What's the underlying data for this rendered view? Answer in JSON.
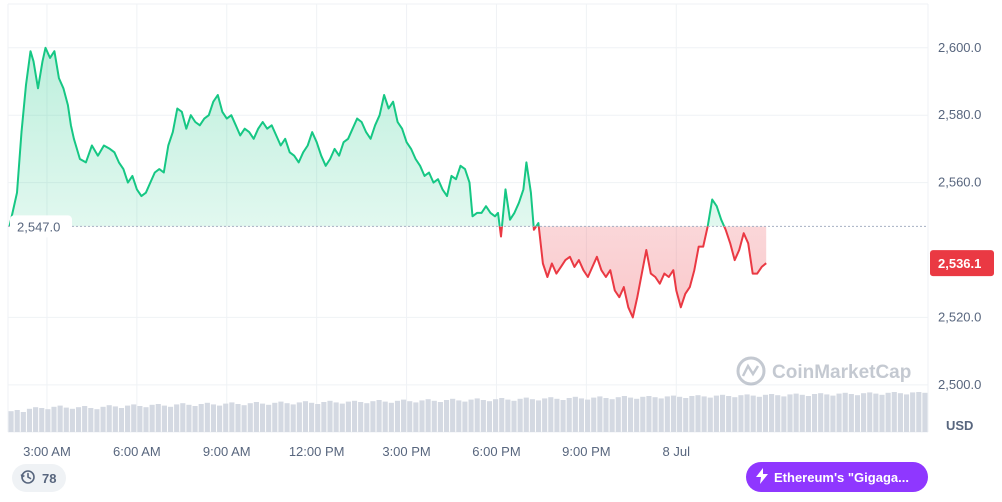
{
  "chart_data": {
    "type": "area",
    "currency": "USD",
    "baseline_value": 2547.0,
    "baseline_label": "2,547.0",
    "last_value": 2536.1,
    "last_label": "2,536.1",
    "ylim": [
      2486,
      2613
    ],
    "y_ticks": [
      {
        "value": 2600,
        "label": "2,600.0"
      },
      {
        "value": 2580,
        "label": "2,580.0"
      },
      {
        "value": 2560,
        "label": "2,560.0"
      },
      {
        "value": 2520,
        "label": "2,520.0"
      },
      {
        "value": 2500,
        "label": "2,500.0"
      }
    ],
    "x_range_hours": [
      1.7,
      32.4
    ],
    "x_ticks": [
      {
        "hour": 3,
        "label": "3:00 AM"
      },
      {
        "hour": 6,
        "label": "6:00 AM"
      },
      {
        "hour": 9,
        "label": "9:00 AM"
      },
      {
        "hour": 12,
        "label": "12:00 PM"
      },
      {
        "hour": 15,
        "label": "3:00 PM"
      },
      {
        "hour": 18,
        "label": "6:00 PM"
      },
      {
        "hour": 21,
        "label": "9:00 PM"
      },
      {
        "hour": 24,
        "label": "8 Jul"
      }
    ],
    "price_series": [
      [
        1.75,
        2547.0
      ],
      [
        1.85,
        2551.0
      ],
      [
        2.0,
        2557.0
      ],
      [
        2.15,
        2575.0
      ],
      [
        2.3,
        2589.0
      ],
      [
        2.45,
        2599.0
      ],
      [
        2.55,
        2596.0
      ],
      [
        2.7,
        2588.0
      ],
      [
        2.85,
        2596.0
      ],
      [
        2.95,
        2600.0
      ],
      [
        3.1,
        2597.0
      ],
      [
        3.25,
        2599.0
      ],
      [
        3.4,
        2591.0
      ],
      [
        3.55,
        2588.0
      ],
      [
        3.7,
        2583.0
      ],
      [
        3.8,
        2577.0
      ],
      [
        3.9,
        2573.0
      ],
      [
        4.0,
        2570.0
      ],
      [
        4.1,
        2567.0
      ],
      [
        4.3,
        2566.0
      ],
      [
        4.5,
        2571.0
      ],
      [
        4.7,
        2568.0
      ],
      [
        4.9,
        2571.0
      ],
      [
        5.1,
        2570.0
      ],
      [
        5.25,
        2569.0
      ],
      [
        5.4,
        2566.0
      ],
      [
        5.55,
        2564.0
      ],
      [
        5.7,
        2560.0
      ],
      [
        5.85,
        2562.0
      ],
      [
        6.0,
        2558.0
      ],
      [
        6.15,
        2556.0
      ],
      [
        6.3,
        2557.0
      ],
      [
        6.45,
        2560.0
      ],
      [
        6.6,
        2563.0
      ],
      [
        6.75,
        2564.0
      ],
      [
        6.9,
        2563.0
      ],
      [
        7.05,
        2571.0
      ],
      [
        7.2,
        2575.0
      ],
      [
        7.35,
        2582.0
      ],
      [
        7.5,
        2581.0
      ],
      [
        7.65,
        2576.0
      ],
      [
        7.8,
        2580.0
      ],
      [
        7.95,
        2578.0
      ],
      [
        8.1,
        2577.0
      ],
      [
        8.25,
        2579.0
      ],
      [
        8.4,
        2580.0
      ],
      [
        8.55,
        2584.0
      ],
      [
        8.7,
        2586.0
      ],
      [
        8.85,
        2581.0
      ],
      [
        9.0,
        2579.0
      ],
      [
        9.15,
        2580.0
      ],
      [
        9.3,
        2577.0
      ],
      [
        9.45,
        2574.0
      ],
      [
        9.6,
        2576.0
      ],
      [
        9.75,
        2575.0
      ],
      [
        9.9,
        2573.0
      ],
      [
        10.05,
        2576.0
      ],
      [
        10.2,
        2578.0
      ],
      [
        10.35,
        2576.0
      ],
      [
        10.5,
        2577.0
      ],
      [
        10.65,
        2574.0
      ],
      [
        10.8,
        2571.0
      ],
      [
        10.95,
        2573.0
      ],
      [
        11.1,
        2569.0
      ],
      [
        11.25,
        2568.0
      ],
      [
        11.4,
        2566.0
      ],
      [
        11.55,
        2569.0
      ],
      [
        11.7,
        2571.0
      ],
      [
        11.85,
        2575.0
      ],
      [
        12.0,
        2572.0
      ],
      [
        12.15,
        2568.0
      ],
      [
        12.3,
        2565.0
      ],
      [
        12.45,
        2567.0
      ],
      [
        12.6,
        2570.0
      ],
      [
        12.75,
        2568.0
      ],
      [
        12.9,
        2572.0
      ],
      [
        13.05,
        2573.0
      ],
      [
        13.2,
        2576.0
      ],
      [
        13.35,
        2579.0
      ],
      [
        13.5,
        2578.0
      ],
      [
        13.65,
        2575.0
      ],
      [
        13.8,
        2573.0
      ],
      [
        13.95,
        2577.0
      ],
      [
        14.1,
        2580.0
      ],
      [
        14.25,
        2586.0
      ],
      [
        14.4,
        2582.0
      ],
      [
        14.55,
        2584.0
      ],
      [
        14.7,
        2578.0
      ],
      [
        14.85,
        2576.0
      ],
      [
        15.0,
        2572.0
      ],
      [
        15.15,
        2570.0
      ],
      [
        15.3,
        2567.0
      ],
      [
        15.45,
        2565.0
      ],
      [
        15.6,
        2562.0
      ],
      [
        15.75,
        2563.0
      ],
      [
        15.9,
        2560.0
      ],
      [
        16.05,
        2561.0
      ],
      [
        16.2,
        2558.0
      ],
      [
        16.35,
        2556.0
      ],
      [
        16.5,
        2562.0
      ],
      [
        16.65,
        2561.0
      ],
      [
        16.8,
        2565.0
      ],
      [
        16.95,
        2564.0
      ],
      [
        17.1,
        2560.0
      ],
      [
        17.2,
        2550.0
      ],
      [
        17.35,
        2551.0
      ],
      [
        17.5,
        2551.0
      ],
      [
        17.65,
        2553.0
      ],
      [
        17.8,
        2551.0
      ],
      [
        17.95,
        2550.0
      ],
      [
        18.05,
        2551.0
      ],
      [
        18.15,
        2544.0
      ],
      [
        18.3,
        2558.0
      ],
      [
        18.45,
        2549.0
      ],
      [
        18.6,
        2551.0
      ],
      [
        18.75,
        2554.0
      ],
      [
        18.9,
        2558.0
      ],
      [
        19.0,
        2566.0
      ],
      [
        19.15,
        2557.0
      ],
      [
        19.25,
        2546.0
      ],
      [
        19.4,
        2548.0
      ],
      [
        19.55,
        2536.0
      ],
      [
        19.7,
        2532.0
      ],
      [
        19.85,
        2536.0
      ],
      [
        20.0,
        2533.0
      ],
      [
        20.15,
        2535.0
      ],
      [
        20.3,
        2537.0
      ],
      [
        20.45,
        2538.0
      ],
      [
        20.6,
        2535.0
      ],
      [
        20.75,
        2537.0
      ],
      [
        20.9,
        2534.0
      ],
      [
        21.05,
        2532.0
      ],
      [
        21.2,
        2535.0
      ],
      [
        21.35,
        2538.0
      ],
      [
        21.5,
        2534.0
      ],
      [
        21.65,
        2532.0
      ],
      [
        21.8,
        2534.0
      ],
      [
        21.95,
        2528.0
      ],
      [
        22.1,
        2526.0
      ],
      [
        22.25,
        2529.0
      ],
      [
        22.4,
        2523.0
      ],
      [
        22.55,
        2520.0
      ],
      [
        22.7,
        2526.0
      ],
      [
        22.85,
        2533.0
      ],
      [
        23.0,
        2540.0
      ],
      [
        23.15,
        2533.0
      ],
      [
        23.3,
        2532.0
      ],
      [
        23.45,
        2530.0
      ],
      [
        23.6,
        2533.0
      ],
      [
        23.75,
        2532.0
      ],
      [
        23.9,
        2534.0
      ],
      [
        24.0,
        2528.0
      ],
      [
        24.15,
        2523.0
      ],
      [
        24.3,
        2527.0
      ],
      [
        24.45,
        2529.0
      ],
      [
        24.6,
        2534.0
      ],
      [
        24.75,
        2541.0
      ],
      [
        24.9,
        2541.0
      ],
      [
        25.05,
        2547.0
      ],
      [
        25.2,
        2555.0
      ],
      [
        25.35,
        2553.0
      ],
      [
        25.5,
        2549.0
      ],
      [
        25.65,
        2546.0
      ],
      [
        25.8,
        2542.0
      ],
      [
        25.95,
        2537.0
      ],
      [
        26.1,
        2540.0
      ],
      [
        26.25,
        2545.0
      ],
      [
        26.4,
        2542.0
      ],
      [
        26.55,
        2533.0
      ],
      [
        26.7,
        2533.0
      ],
      [
        26.85,
        2535.0
      ],
      [
        27.0,
        2536.1
      ]
    ],
    "volume_series": [
      0.52,
      0.55,
      0.5,
      0.58,
      0.62,
      0.6,
      0.57,
      0.63,
      0.66,
      0.61,
      0.58,
      0.62,
      0.65,
      0.6,
      0.57,
      0.63,
      0.67,
      0.64,
      0.6,
      0.66,
      0.69,
      0.65,
      0.62,
      0.68,
      0.7,
      0.66,
      0.63,
      0.69,
      0.72,
      0.68,
      0.65,
      0.7,
      0.73,
      0.69,
      0.66,
      0.71,
      0.74,
      0.7,
      0.67,
      0.72,
      0.75,
      0.71,
      0.68,
      0.73,
      0.76,
      0.72,
      0.69,
      0.74,
      0.77,
      0.73,
      0.7,
      0.75,
      0.78,
      0.74,
      0.71,
      0.76,
      0.78,
      0.75,
      0.72,
      0.77,
      0.8,
      0.76,
      0.73,
      0.78,
      0.81,
      0.77,
      0.74,
      0.79,
      0.82,
      0.78,
      0.75,
      0.8,
      0.83,
      0.79,
      0.76,
      0.81,
      0.84,
      0.8,
      0.77,
      0.82,
      0.85,
      0.81,
      0.78,
      0.83,
      0.86,
      0.82,
      0.79,
      0.84,
      0.87,
      0.83,
      0.8,
      0.85,
      0.88,
      0.84,
      0.81,
      0.86,
      0.89,
      0.85,
      0.82,
      0.87,
      0.9,
      0.86,
      0.83,
      0.88,
      0.9,
      0.87,
      0.84,
      0.89,
      0.91,
      0.88,
      0.85,
      0.9,
      0.92,
      0.89,
      0.86,
      0.91,
      0.93,
      0.9,
      0.87,
      0.92,
      0.94,
      0.91,
      0.88,
      0.93,
      0.95,
      0.92,
      0.89,
      0.94,
      0.96,
      0.93,
      0.9,
      0.95,
      0.97,
      0.94,
      0.91,
      0.96,
      0.98,
      0.95,
      0.92,
      0.97,
      0.99,
      0.96,
      0.93,
      0.98,
      1.0,
      0.97,
      0.94,
      0.99,
      1.0,
      0.98
    ],
    "colors": {
      "up_line": "#16c784",
      "down_line": "#ea3943",
      "up_fill": "#16c784",
      "down_fill": "#ea3943",
      "grid": "#eff2f5",
      "axis_text": "#58667e",
      "volume": "#d4d9e2",
      "last_label_bg": "#ea3943",
      "baseline": "#a6b0c3"
    }
  },
  "watermark": {
    "text": "CoinMarketCap"
  },
  "history_pill": {
    "icon": "history-icon",
    "count": "78"
  },
  "news_pill": {
    "icon": "lightning-icon",
    "text": "Ethereum's \"Gigaga..."
  }
}
